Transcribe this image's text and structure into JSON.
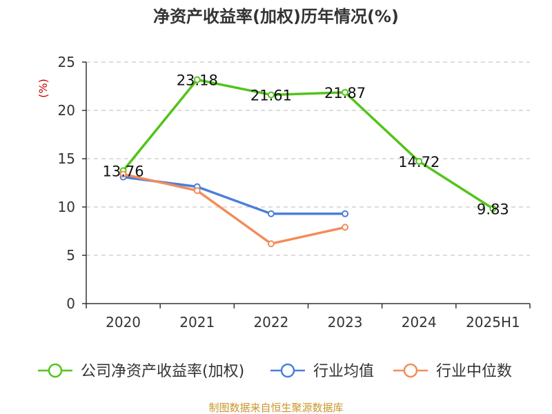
{
  "chart_data": {
    "type": "line",
    "title": "净资产收益率(加权)历年情况(%)",
    "ylabel": "(%)",
    "xlabel": "",
    "categories": [
      "2020",
      "2021",
      "2022",
      "2023",
      "2024",
      "2025H1"
    ],
    "ylim": [
      0,
      25
    ],
    "yticks": [
      0,
      5,
      10,
      15,
      20,
      25
    ],
    "grid": true,
    "legend_position": "bottom",
    "series": [
      {
        "name": "公司净资产收益率(加权)",
        "color": "#52c41a",
        "values": [
          13.76,
          23.18,
          21.61,
          21.87,
          14.72,
          9.83
        ],
        "labels": [
          "13.76",
          "23.18",
          "21.61",
          "21.87",
          "14.72",
          "9.83"
        ],
        "show_labels": true
      },
      {
        "name": "行业均值",
        "color": "#4a7fdb",
        "values": [
          13.1,
          12.1,
          9.3,
          9.3,
          null,
          null
        ],
        "show_labels": false
      },
      {
        "name": "行业中位数",
        "color": "#f28c5a",
        "values": [
          13.4,
          11.7,
          6.2,
          7.9,
          null,
          null
        ],
        "show_labels": false
      }
    ]
  },
  "source_text": "制图数据来自恒生聚源数据库"
}
